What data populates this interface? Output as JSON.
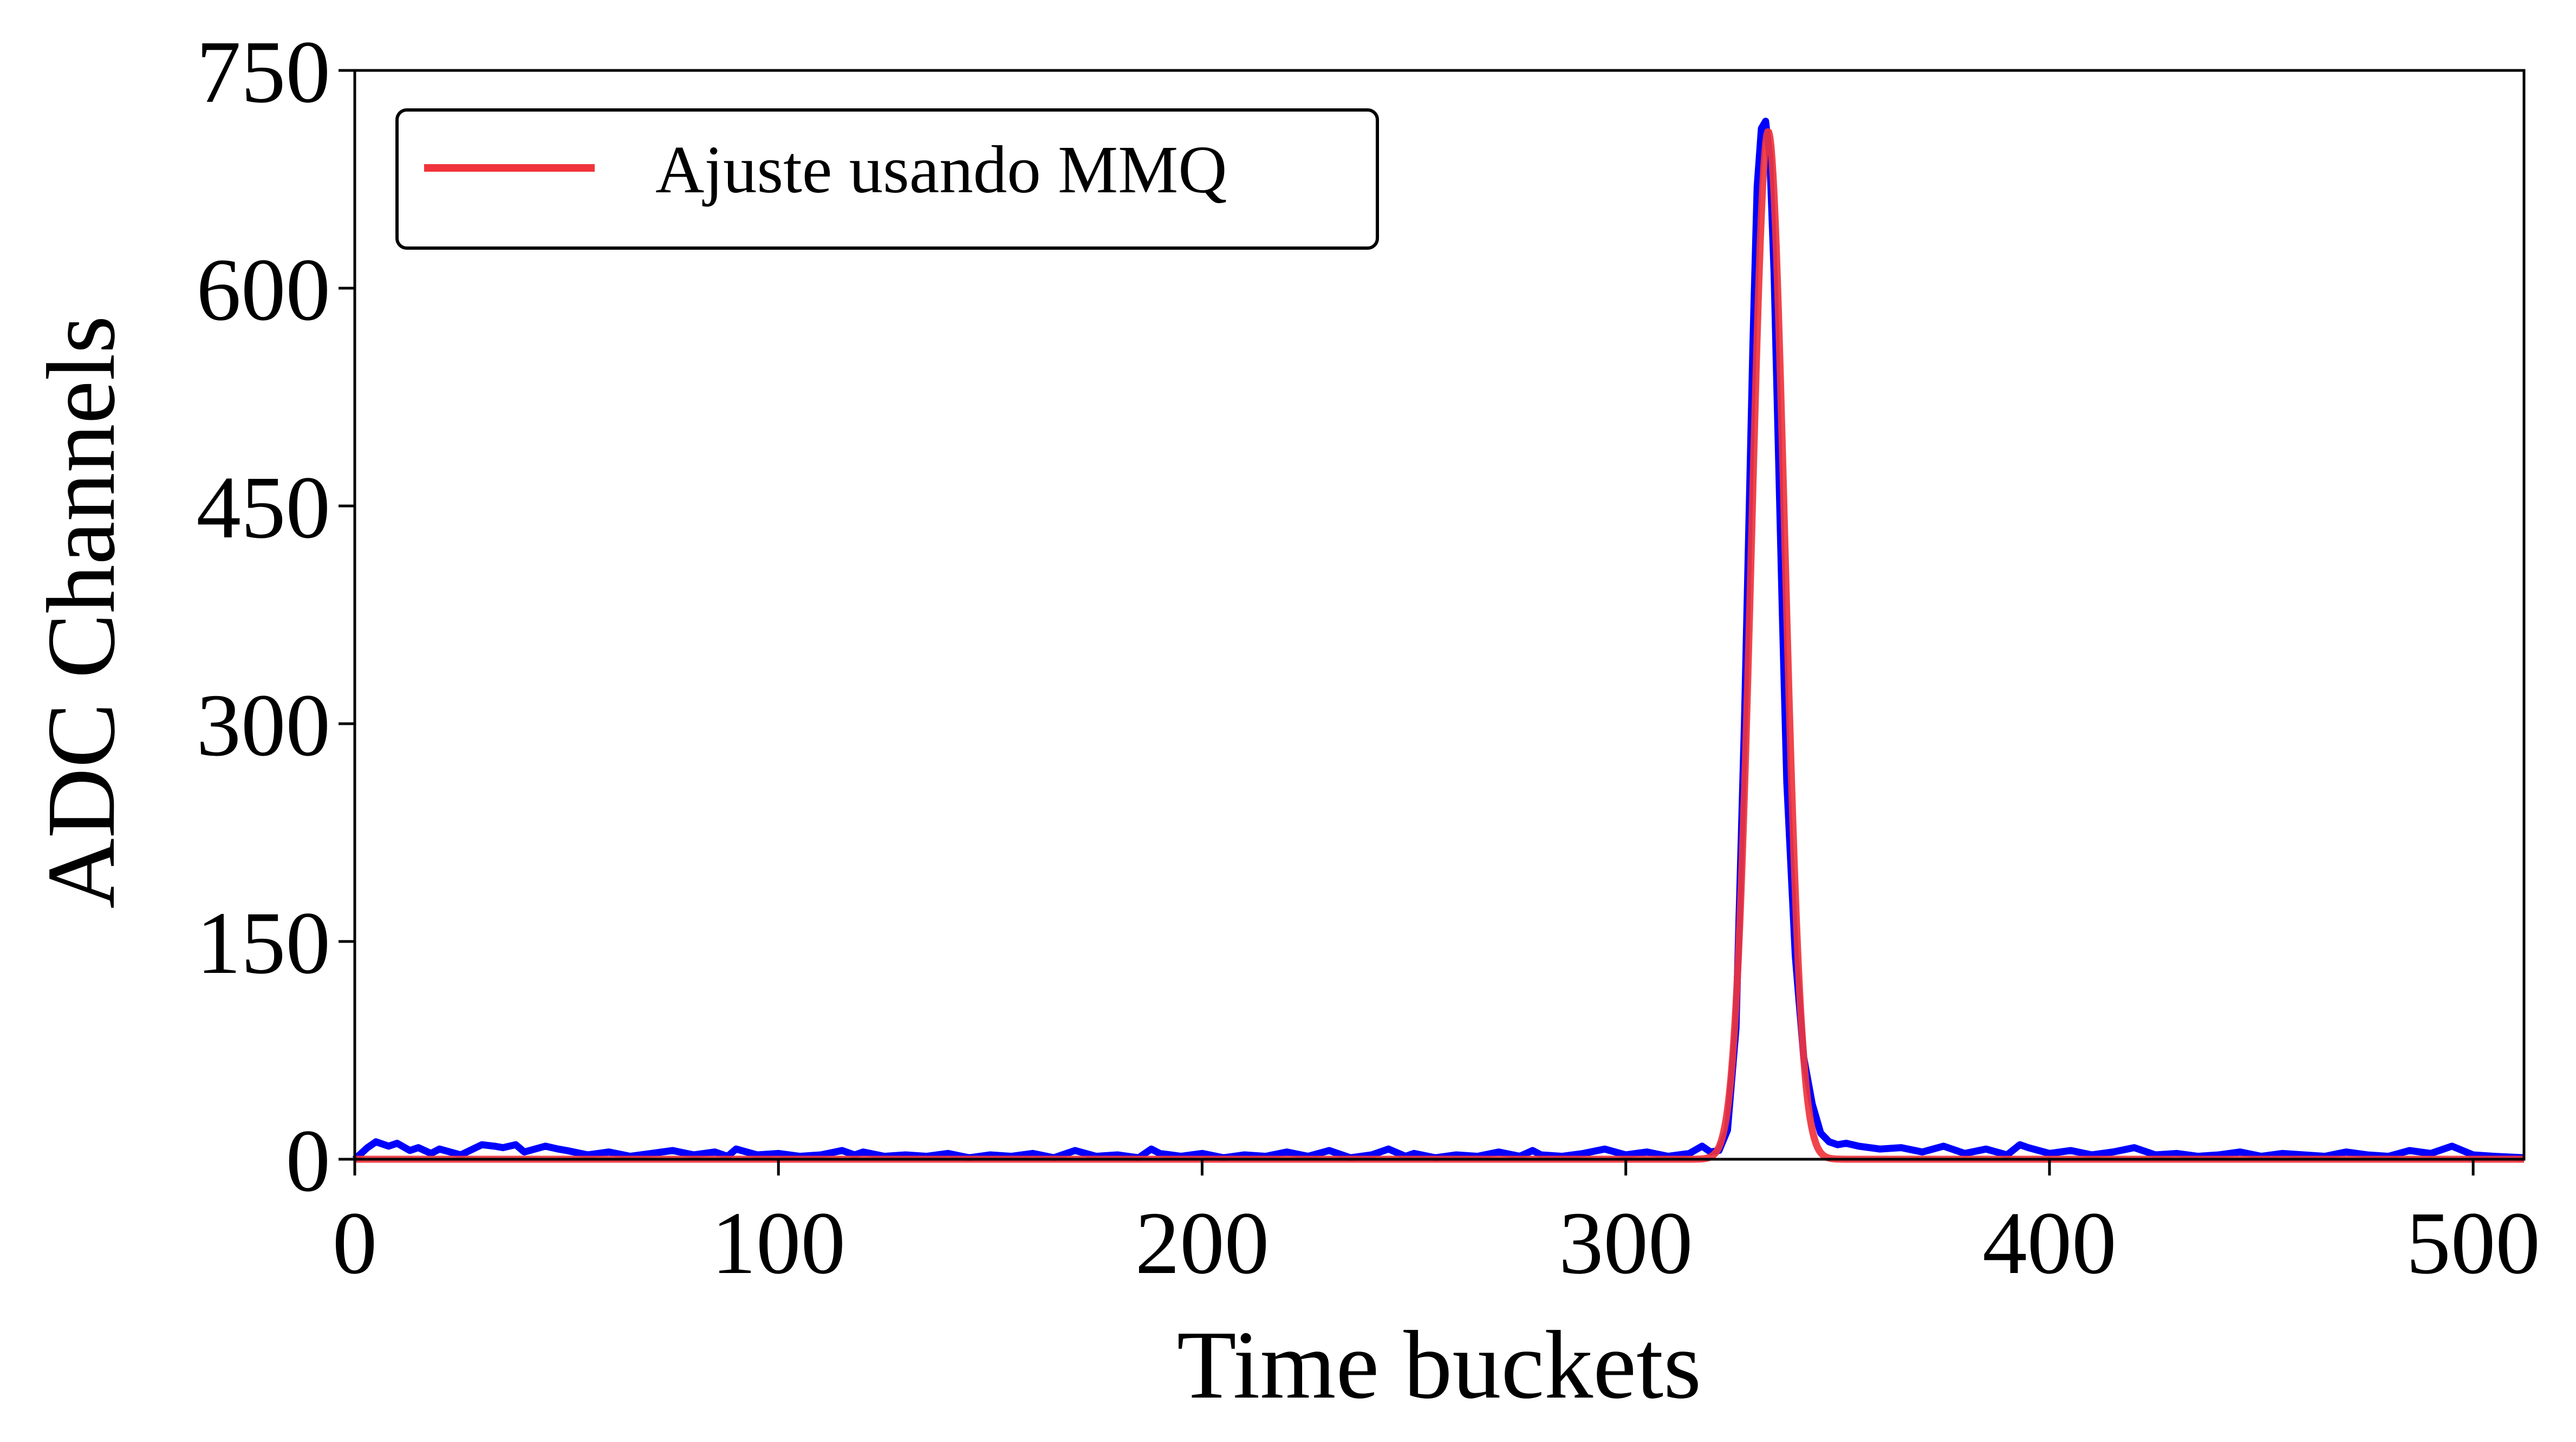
{
  "chart_data": {
    "type": "line",
    "xlabel": "Time buckets",
    "ylabel": "ADC Channels",
    "xlim": [
      0,
      512
    ],
    "ylim": [
      0,
      750
    ],
    "xticks": [
      "0",
      "100",
      "200",
      "300",
      "400",
      "500"
    ],
    "yticks": [
      "0",
      "150",
      "300",
      "450",
      "600",
      "750"
    ],
    "xtick_values": [
      0,
      100,
      200,
      300,
      400,
      500
    ],
    "ytick_values": [
      0,
      150,
      300,
      450,
      600,
      750
    ],
    "grid": false,
    "legend_placement": "top-left",
    "series": [
      {
        "key": "signal",
        "color": "#0000ff",
        "x": [
          0,
          3,
          5,
          8,
          10,
          13,
          15,
          18,
          20,
          25,
          30,
          33,
          35,
          38,
          40,
          45,
          48,
          50,
          55,
          60,
          65,
          70,
          75,
          80,
          85,
          88,
          90,
          95,
          100,
          105,
          110,
          115,
          118,
          120,
          125,
          130,
          135,
          140,
          145,
          150,
          155,
          160,
          165,
          170,
          175,
          180,
          185,
          188,
          190,
          195,
          200,
          205,
          210,
          215,
          220,
          225,
          230,
          235,
          240,
          244,
          248,
          250,
          255,
          260,
          265,
          270,
          275,
          278,
          280,
          285,
          290,
          295,
          300,
          305,
          310,
          315,
          318,
          320,
          322,
          324,
          326,
          328,
          330,
          331,
          332,
          333,
          334,
          335,
          336,
          337,
          338,
          340,
          342,
          344,
          346,
          348,
          350,
          352,
          355,
          360,
          365,
          370,
          375,
          380,
          385,
          390,
          393,
          395,
          400,
          405,
          410,
          415,
          420,
          425,
          430,
          435,
          440,
          445,
          450,
          455,
          460,
          465,
          470,
          475,
          480,
          485,
          490,
          495,
          500,
          505,
          512
        ],
        "y": [
          0,
          8,
          12,
          9,
          11,
          6,
          8,
          4,
          7,
          3,
          10,
          9,
          8,
          10,
          5,
          9,
          7,
          6,
          3,
          5,
          2,
          4,
          6,
          3,
          5,
          2,
          7,
          3,
          4,
          2,
          3,
          6,
          3,
          5,
          2,
          3,
          2,
          4,
          1,
          3,
          2,
          4,
          1,
          6,
          2,
          3,
          1,
          7,
          4,
          2,
          4,
          1,
          3,
          2,
          5,
          2,
          6,
          1,
          3,
          7,
          2,
          4,
          1,
          3,
          2,
          5,
          2,
          6,
          3,
          2,
          4,
          7,
          3,
          5,
          2,
          4,
          9,
          5,
          6,
          20,
          90,
          300,
          560,
          670,
          710,
          715,
          690,
          610,
          490,
          370,
          260,
          140,
          70,
          38,
          18,
          12,
          10,
          11,
          9,
          7,
          8,
          5,
          9,
          4,
          7,
          3,
          10,
          8,
          4,
          6,
          3,
          5,
          8,
          3,
          4,
          2,
          3,
          5,
          2,
          4,
          3,
          2,
          5,
          3,
          2,
          6,
          4,
          9,
          3,
          2,
          1
        ]
      },
      {
        "key": "fit",
        "name": "Ajuste usando MMQ",
        "color": "#f0343c",
        "model": "gaussian",
        "amplitude": 708,
        "center": 333.6,
        "sigma": 3.9
      }
    ]
  }
}
